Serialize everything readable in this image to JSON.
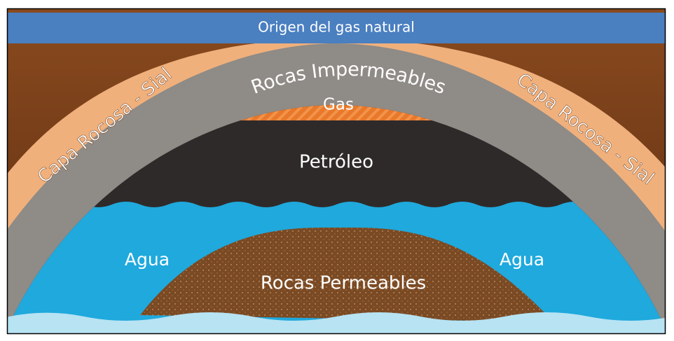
{
  "header": {
    "title": "Origen del gas natural"
  },
  "labels": {
    "sial_left": "Capa Rocosa - Sial",
    "impermeable": "Rocas Impermeables",
    "gas": "Gas",
    "oil": "Petróleo",
    "sial_right": "Capa Rocosa - Sial",
    "water_left": "Agua",
    "water_right": "Agua",
    "permeable": "Rocas Permeables"
  }
}
